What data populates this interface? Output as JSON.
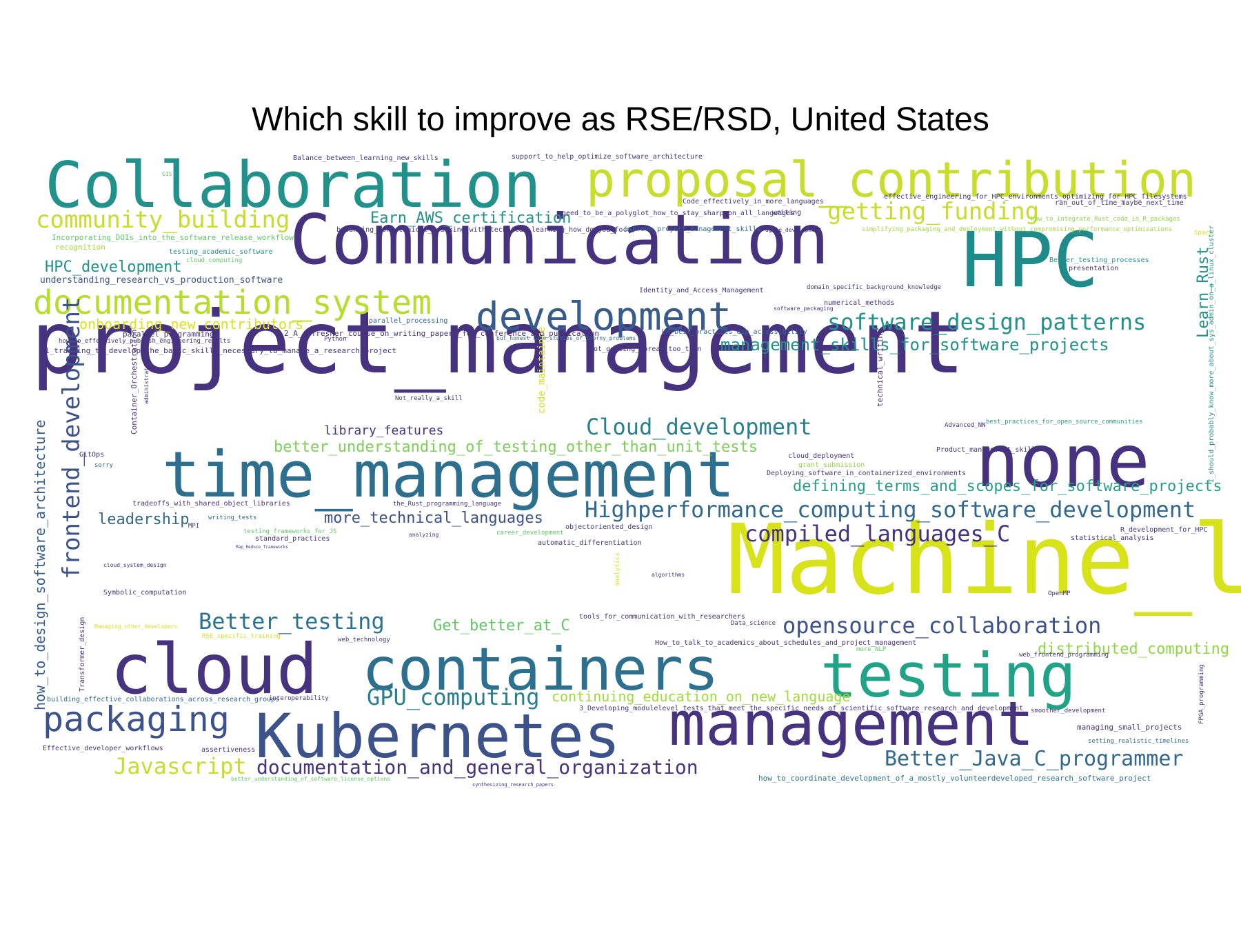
{
  "title": "Which skill to improve as RSE/RSD, United States",
  "palette": [
    "#440154",
    "#46327e",
    "#365c8d",
    "#277f8e",
    "#1fa187",
    "#4ac16d",
    "#a0da39",
    "#d8e219",
    "#fde725"
  ],
  "words": [
    {
      "text": "Machine_learning",
      "color": "#d8e219"
    },
    {
      "text": "project_management",
      "color": "#46327e"
    },
    {
      "text": "Communication",
      "color": "#46327e"
    },
    {
      "text": "HPC",
      "color": "#1f8a8a"
    },
    {
      "text": "Collaboration",
      "color": "#21918c"
    },
    {
      "text": "proposal_contribution",
      "color": "#c8dc2a"
    },
    {
      "text": "none",
      "color": "#46327e"
    },
    {
      "text": "time_management",
      "color": "#2c6f8e"
    },
    {
      "text": "cloud",
      "color": "#46327e"
    },
    {
      "text": "containers",
      "color": "#2c6f8e"
    },
    {
      "text": "testing",
      "color": "#20a387"
    },
    {
      "text": "Kubernetes",
      "color": "#3b528b"
    },
    {
      "text": "management",
      "color": "#46327e"
    },
    {
      "text": "development",
      "color": "#365c8d"
    },
    {
      "text": "documentation_system",
      "color": "#b5de2b"
    },
    {
      "text": "community_building",
      "color": "#c8dc2a"
    },
    {
      "text": "getting_funding",
      "color": "#c8dc2a"
    },
    {
      "text": "software_design_patterns",
      "color": "#21918c"
    },
    {
      "text": "management_skills_for_software_projects",
      "color": "#21918c"
    },
    {
      "text": "Cloud_development",
      "color": "#277f8e"
    },
    {
      "text": "Highperformance_computing_software_development",
      "color": "#31688e"
    },
    {
      "text": "compiled_languages_C",
      "color": "#46327e"
    },
    {
      "text": "opensource_collaboration",
      "color": "#3b528b"
    },
    {
      "text": "Better_testing",
      "color": "#2c728e"
    },
    {
      "text": "packaging",
      "color": "#3b528b"
    },
    {
      "text": "GPU_computing",
      "color": "#277f8e"
    },
    {
      "text": "Javascript",
      "color": "#c8dc2a"
    },
    {
      "text": "documentation_and_general_organization",
      "color": "#46327e"
    },
    {
      "text": "Better_Java_C_programmer",
      "color": "#31688e"
    },
    {
      "text": "distributed_computing",
      "color": "#8fd744"
    },
    {
      "text": "defining_terms_and_scopes_for_software_projects",
      "color": "#2a9d8a"
    },
    {
      "text": "more_technical_languages",
      "color": "#3b528b"
    },
    {
      "text": "library_features",
      "color": "#46327e"
    },
    {
      "text": "better_understanding_of_testing_other_than_unit_tests",
      "color": "#7ad151"
    },
    {
      "text": "leadership",
      "color": "#31688e"
    },
    {
      "text": "frontend_development",
      "color": "#3b528b"
    },
    {
      "text": "HPC_development",
      "color": "#21918c"
    },
    {
      "text": "onboarding_new_contributors",
      "color": "#d8e219"
    },
    {
      "text": "Earn_AWS_certification",
      "color": "#21918c"
    },
    {
      "text": "Get_better_at_C",
      "color": "#5ec962"
    },
    {
      "text": "continuing_education_on_new_language",
      "color": "#a0da39"
    },
    {
      "text": "Learn_Rust",
      "color": "#21918c"
    },
    {
      "text": "how_to_design_software_architecture",
      "color": "#365c8d"
    },
    {
      "text": "understanding_research_vs_production_software",
      "color": "#3b528b"
    },
    {
      "text": "Incorporating_DOIs_into_the_software_release_workflow",
      "color": "#5ec962"
    },
    {
      "text": "1_training_to_develop_the_basic_skills_necessary_to_manage_a_research_project",
      "color": "#46327e"
    },
    {
      "text": "balancing_nontechnical_learning_with_technical_learning_how_do_you_focus",
      "color": "#46327e"
    },
    {
      "text": "need_to_be_a_polyglot_how_to_stay_sharp_on_all_languages",
      "color": "#46327e"
    },
    {
      "text": "effective_engineering_for_HPC_environments_optimizing_for_HPC_filesystems",
      "color": "#46327e"
    },
    {
      "text": "2_A_refresher_course_on_writing_papers_for_conference_and_publication",
      "color": "#46327e"
    },
    {
      "text": "3_Developing_modulelevel_tests_that_meet_the_specific_needs_of_scientific_software_research_and_development",
      "color": "#46327e"
    },
    {
      "text": "how_to_coordinate_development_of_a_mostly_volunteerdeveloped_research_software_project",
      "color": "#2c728e"
    },
    {
      "text": "How_to_talk_to_academics_about_schedules_and_project_management",
      "color": "#46327e"
    },
    {
      "text": "tools_for_communication_with_researchers",
      "color": "#46327e"
    },
    {
      "text": "building_effective_collaborations_across_research_groups",
      "color": "#31688e"
    },
    {
      "text": "support_to_help_optimize_software_architecture",
      "color": "#46327e"
    },
    {
      "text": "Balance_between_learning_new_skills",
      "color": "#46327e"
    },
    {
      "text": "Code_effectively_in_more_languages",
      "color": "#46327e"
    },
    {
      "text": "improve_project_management_skills",
      "color": "#31688e"
    },
    {
      "text": "simplifying_packaging_and_deployment_without_compromising_performance_optimizations",
      "color": "#a0da39"
    },
    {
      "text": "how_to_integrate_Rust_code_in_R_packages",
      "color": "#8fd744"
    },
    {
      "text": "ran_out_of_time_maybe_next_time",
      "color": "#46327e"
    },
    {
      "text": "writing",
      "color": "#46327e"
    },
    {
      "text": "agile_development",
      "color": "#46327e"
    },
    {
      "text": "Identity_and_Access_Management",
      "color": "#46327e"
    },
    {
      "text": "domain_specific_background_knowledge",
      "color": "#46327e"
    },
    {
      "text": "numerical_methods",
      "color": "#46327e"
    },
    {
      "text": "software_packaging",
      "color": "#46327e"
    },
    {
      "text": "Better_testing_processes",
      "color": "#21918c"
    },
    {
      "text": "presentation",
      "color": "#46327e"
    },
    {
      "text": "Spack",
      "color": "#d8e219"
    },
    {
      "text": "UX_best_practices_esp_accessibility",
      "color": "#31688e"
    },
    {
      "text": "not_getting_spread_too_thin",
      "color": "#46327e"
    },
    {
      "text": "but_honest_case_studies_of_thorny_problems",
      "color": "#31688e"
    },
    {
      "text": "parallel_processing",
      "color": "#31688e"
    },
    {
      "text": "parallel_programming",
      "color": "#46327e"
    },
    {
      "text": "how_to_effectively_publish_engineering_results",
      "color": "#46327e"
    },
    {
      "text": "Python",
      "color": "#46327e"
    },
    {
      "text": "testing_academic_software",
      "color": "#21918c"
    },
    {
      "text": "cloud_computing",
      "color": "#5ec962"
    },
    {
      "text": "recognition",
      "color": "#a0da39"
    },
    {
      "text": "code_maintaince",
      "color": "#d8e219"
    },
    {
      "text": "technical_writing",
      "color": "#46327e"
    },
    {
      "text": "Not_really_a_skill",
      "color": "#46327e"
    },
    {
      "text": "Container_Orchestration",
      "color": "#46327e"
    },
    {
      "text": "Advanced_NN",
      "color": "#46327e"
    },
    {
      "text": "best_practices_for_open_source_communities",
      "color": "#2a9d8a"
    },
    {
      "text": "Product_management_skills",
      "color": "#46327e"
    },
    {
      "text": "cloud_deployment",
      "color": "#46327e"
    },
    {
      "text": "grant_submission",
      "color": "#8fd744"
    },
    {
      "text": "Deploying_software_in_containerized_environments",
      "color": "#46327e"
    },
    {
      "text": "GitOps",
      "color": "#46327e"
    },
    {
      "text": "sorry",
      "color": "#31688e"
    },
    {
      "text": "tradeoffs_with_shared_object_libraries",
      "color": "#46327e"
    },
    {
      "text": "the_Rust_programming_language",
      "color": "#46327e"
    },
    {
      "text": "writing_tests",
      "color": "#31688e"
    },
    {
      "text": "MPI",
      "color": "#46327e"
    },
    {
      "text": "testing_frameworks_for_JS",
      "color": "#5ec962"
    },
    {
      "text": "standard_practices",
      "color": "#46327e"
    },
    {
      "text": "Map_Reduce_frameworks",
      "color": "#46327e"
    },
    {
      "text": "career_development",
      "color": "#5ec962"
    },
    {
      "text": "analyzing",
      "color": "#46327e"
    },
    {
      "text": "objectoriented_design",
      "color": "#46327e"
    },
    {
      "text": "automatic_differentiation",
      "color": "#46327e"
    },
    {
      "text": "statistical_analysis",
      "color": "#46327e"
    },
    {
      "text": "R_development_for_HPC",
      "color": "#46327e"
    },
    {
      "text": "algorithms",
      "color": "#46327e"
    },
    {
      "text": "analytics",
      "color": "#d8e219"
    },
    {
      "text": "OpenMP",
      "color": "#46327e"
    },
    {
      "text": "cloud_system_design",
      "color": "#46327e"
    },
    {
      "text": "Symbolic_computation",
      "color": "#46327e"
    },
    {
      "text": "Transformer_design",
      "color": "#46327e"
    },
    {
      "text": "Managing_other_developers",
      "color": "#d8e219"
    },
    {
      "text": "RSE_specific_training",
      "color": "#d8e219"
    },
    {
      "text": "web_technology",
      "color": "#46327e"
    },
    {
      "text": "Data_science",
      "color": "#46327e"
    },
    {
      "text": "more_NLP",
      "color": "#5ec962"
    },
    {
      "text": "web_frontend_programming",
      "color": "#46327e"
    },
    {
      "text": "interoperability",
      "color": "#46327e"
    },
    {
      "text": "smoother_development",
      "color": "#46327e"
    },
    {
      "text": "managing_small_projects",
      "color": "#46327e"
    },
    {
      "text": "setting_realistic_timelines",
      "color": "#31688e"
    },
    {
      "text": "FPGA_programming",
      "color": "#46327e"
    },
    {
      "text": "Effective_developer_workflows",
      "color": "#46327e"
    },
    {
      "text": "assertiveness",
      "color": "#46327e"
    },
    {
      "text": "better_understanding_of_software_license_options",
      "color": "#5ec962"
    },
    {
      "text": "synthesizing_research_papers",
      "color": "#46327e"
    },
    {
      "text": "math",
      "color": "#46327e"
    },
    {
      "text": "I_should_probably_know_more_about_sys_admin_on_a_linux_cluster",
      "color": "#21918c"
    },
    {
      "text": "GIS",
      "color": "#5ec962"
    },
    {
      "text": "administration",
      "color": "#46327e"
    }
  ]
}
